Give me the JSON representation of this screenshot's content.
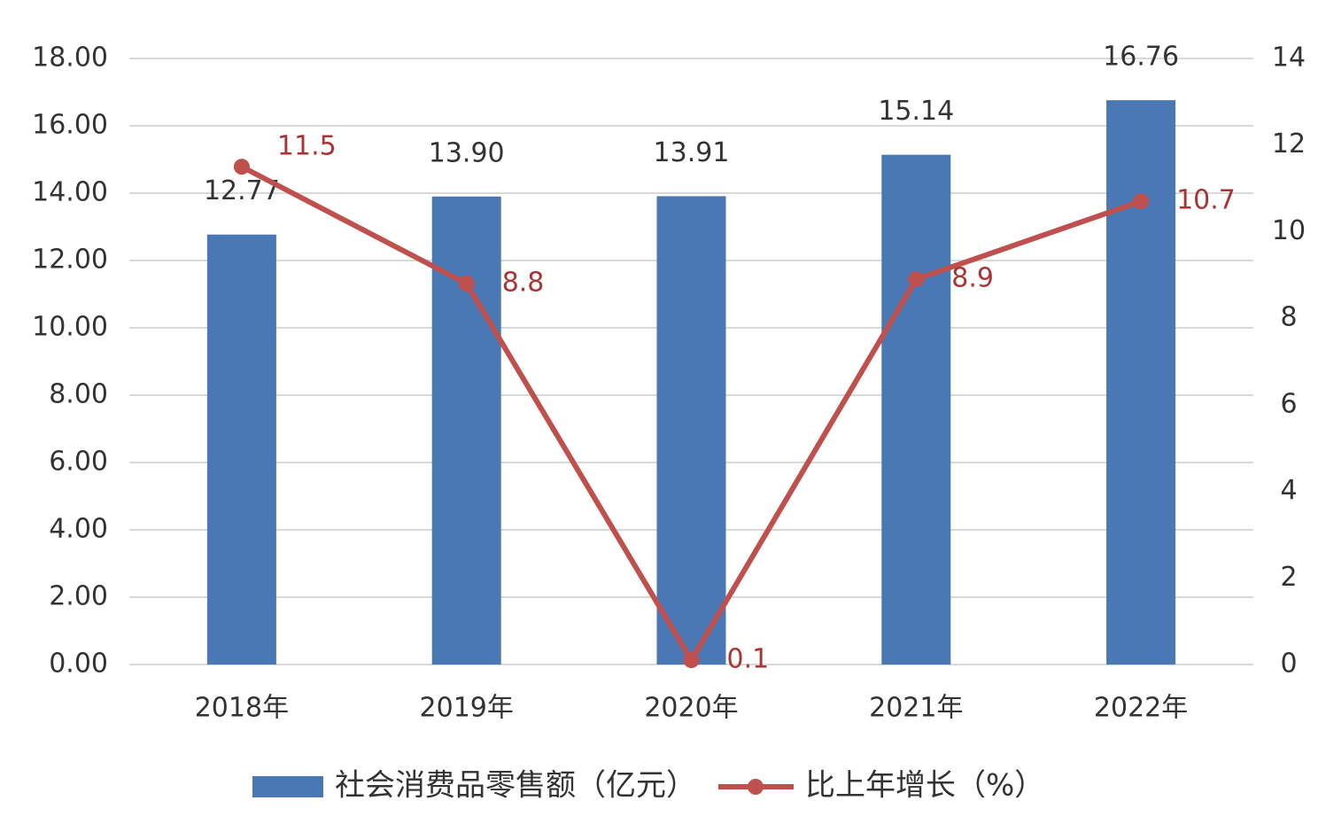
{
  "chart_data": {
    "type": "bar",
    "categories": [
      "2018年",
      "2019年",
      "2020年",
      "2021年",
      "2022年"
    ],
    "series": [
      {
        "name": "社会消费品零售额（亿元）",
        "type": "bar",
        "color": "#4a78b5",
        "values": [
          12.77,
          13.9,
          13.91,
          15.14,
          16.76
        ],
        "value_labels": [
          "12.77",
          "13.90",
          "13.91",
          "15.14",
          "16.76"
        ]
      },
      {
        "name": "比上年增长（%）",
        "type": "line",
        "color": "#c0504d",
        "axis": "y2",
        "values": [
          11.5,
          8.8,
          0.1,
          8.9,
          10.7
        ]
      }
    ],
    "ylim": [
      0,
      18
    ],
    "yticks": [
      {
        "value": 0,
        "label": "0.00"
      },
      {
        "value": 2,
        "label": "2.00"
      },
      {
        "value": 4,
        "label": "4.00"
      },
      {
        "value": 6,
        "label": "6.00"
      },
      {
        "value": 8,
        "label": "8.00"
      },
      {
        "value": 10,
        "label": "10.00"
      },
      {
        "value": 12,
        "label": "12.00"
      },
      {
        "value": 14,
        "label": "14.00"
      },
      {
        "value": 16,
        "label": "16.00"
      },
      {
        "value": 18,
        "label": "18.00"
      }
    ],
    "y2lim": [
      0,
      14
    ],
    "y2ticks": [
      0,
      2,
      4,
      6,
      8,
      10,
      12,
      14
    ],
    "grid": true,
    "legend": "bottom"
  }
}
